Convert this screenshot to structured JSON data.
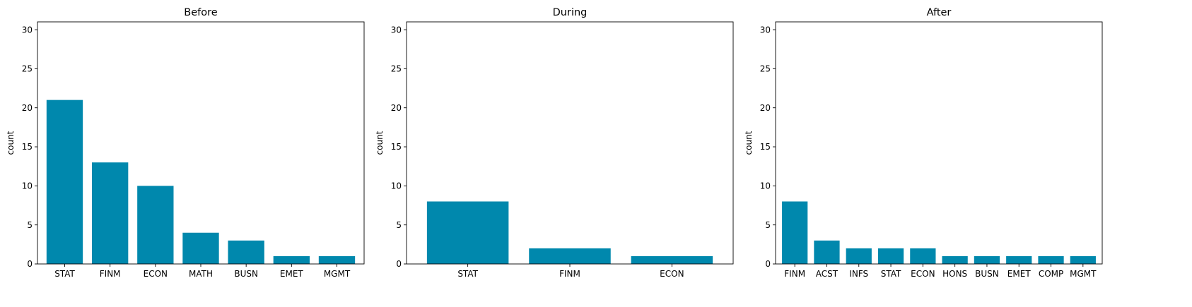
{
  "chart_data": [
    {
      "type": "bar",
      "title": "Before",
      "xlabel": "",
      "ylabel": "count",
      "ylim": [
        0,
        31
      ],
      "yticks": [
        0,
        5,
        10,
        15,
        20,
        25,
        30
      ],
      "categories": [
        "STAT",
        "FINM",
        "ECON",
        "MATH",
        "BUSN",
        "EMET",
        "MGMT"
      ],
      "values": [
        21,
        13,
        10,
        4,
        3,
        1,
        1
      ],
      "color": "#0088ad",
      "grid": false
    },
    {
      "type": "bar",
      "title": "During",
      "xlabel": "",
      "ylabel": "count",
      "ylim": [
        0,
        31
      ],
      "yticks": [
        0,
        5,
        10,
        15,
        20,
        25,
        30
      ],
      "categories": [
        "STAT",
        "FINM",
        "ECON"
      ],
      "values": [
        8,
        2,
        1
      ],
      "color": "#0088ad",
      "grid": false
    },
    {
      "type": "bar",
      "title": "After",
      "xlabel": "",
      "ylabel": "count",
      "ylim": [
        0,
        31
      ],
      "yticks": [
        0,
        5,
        10,
        15,
        20,
        25,
        30
      ],
      "categories": [
        "FINM",
        "ACST",
        "INFS",
        "STAT",
        "ECON",
        "HONS",
        "BUSN",
        "EMET",
        "COMP",
        "MGMT"
      ],
      "values": [
        8,
        3,
        2,
        2,
        2,
        1,
        1,
        1,
        1,
        1
      ],
      "color": "#0088ad",
      "grid": false
    }
  ]
}
